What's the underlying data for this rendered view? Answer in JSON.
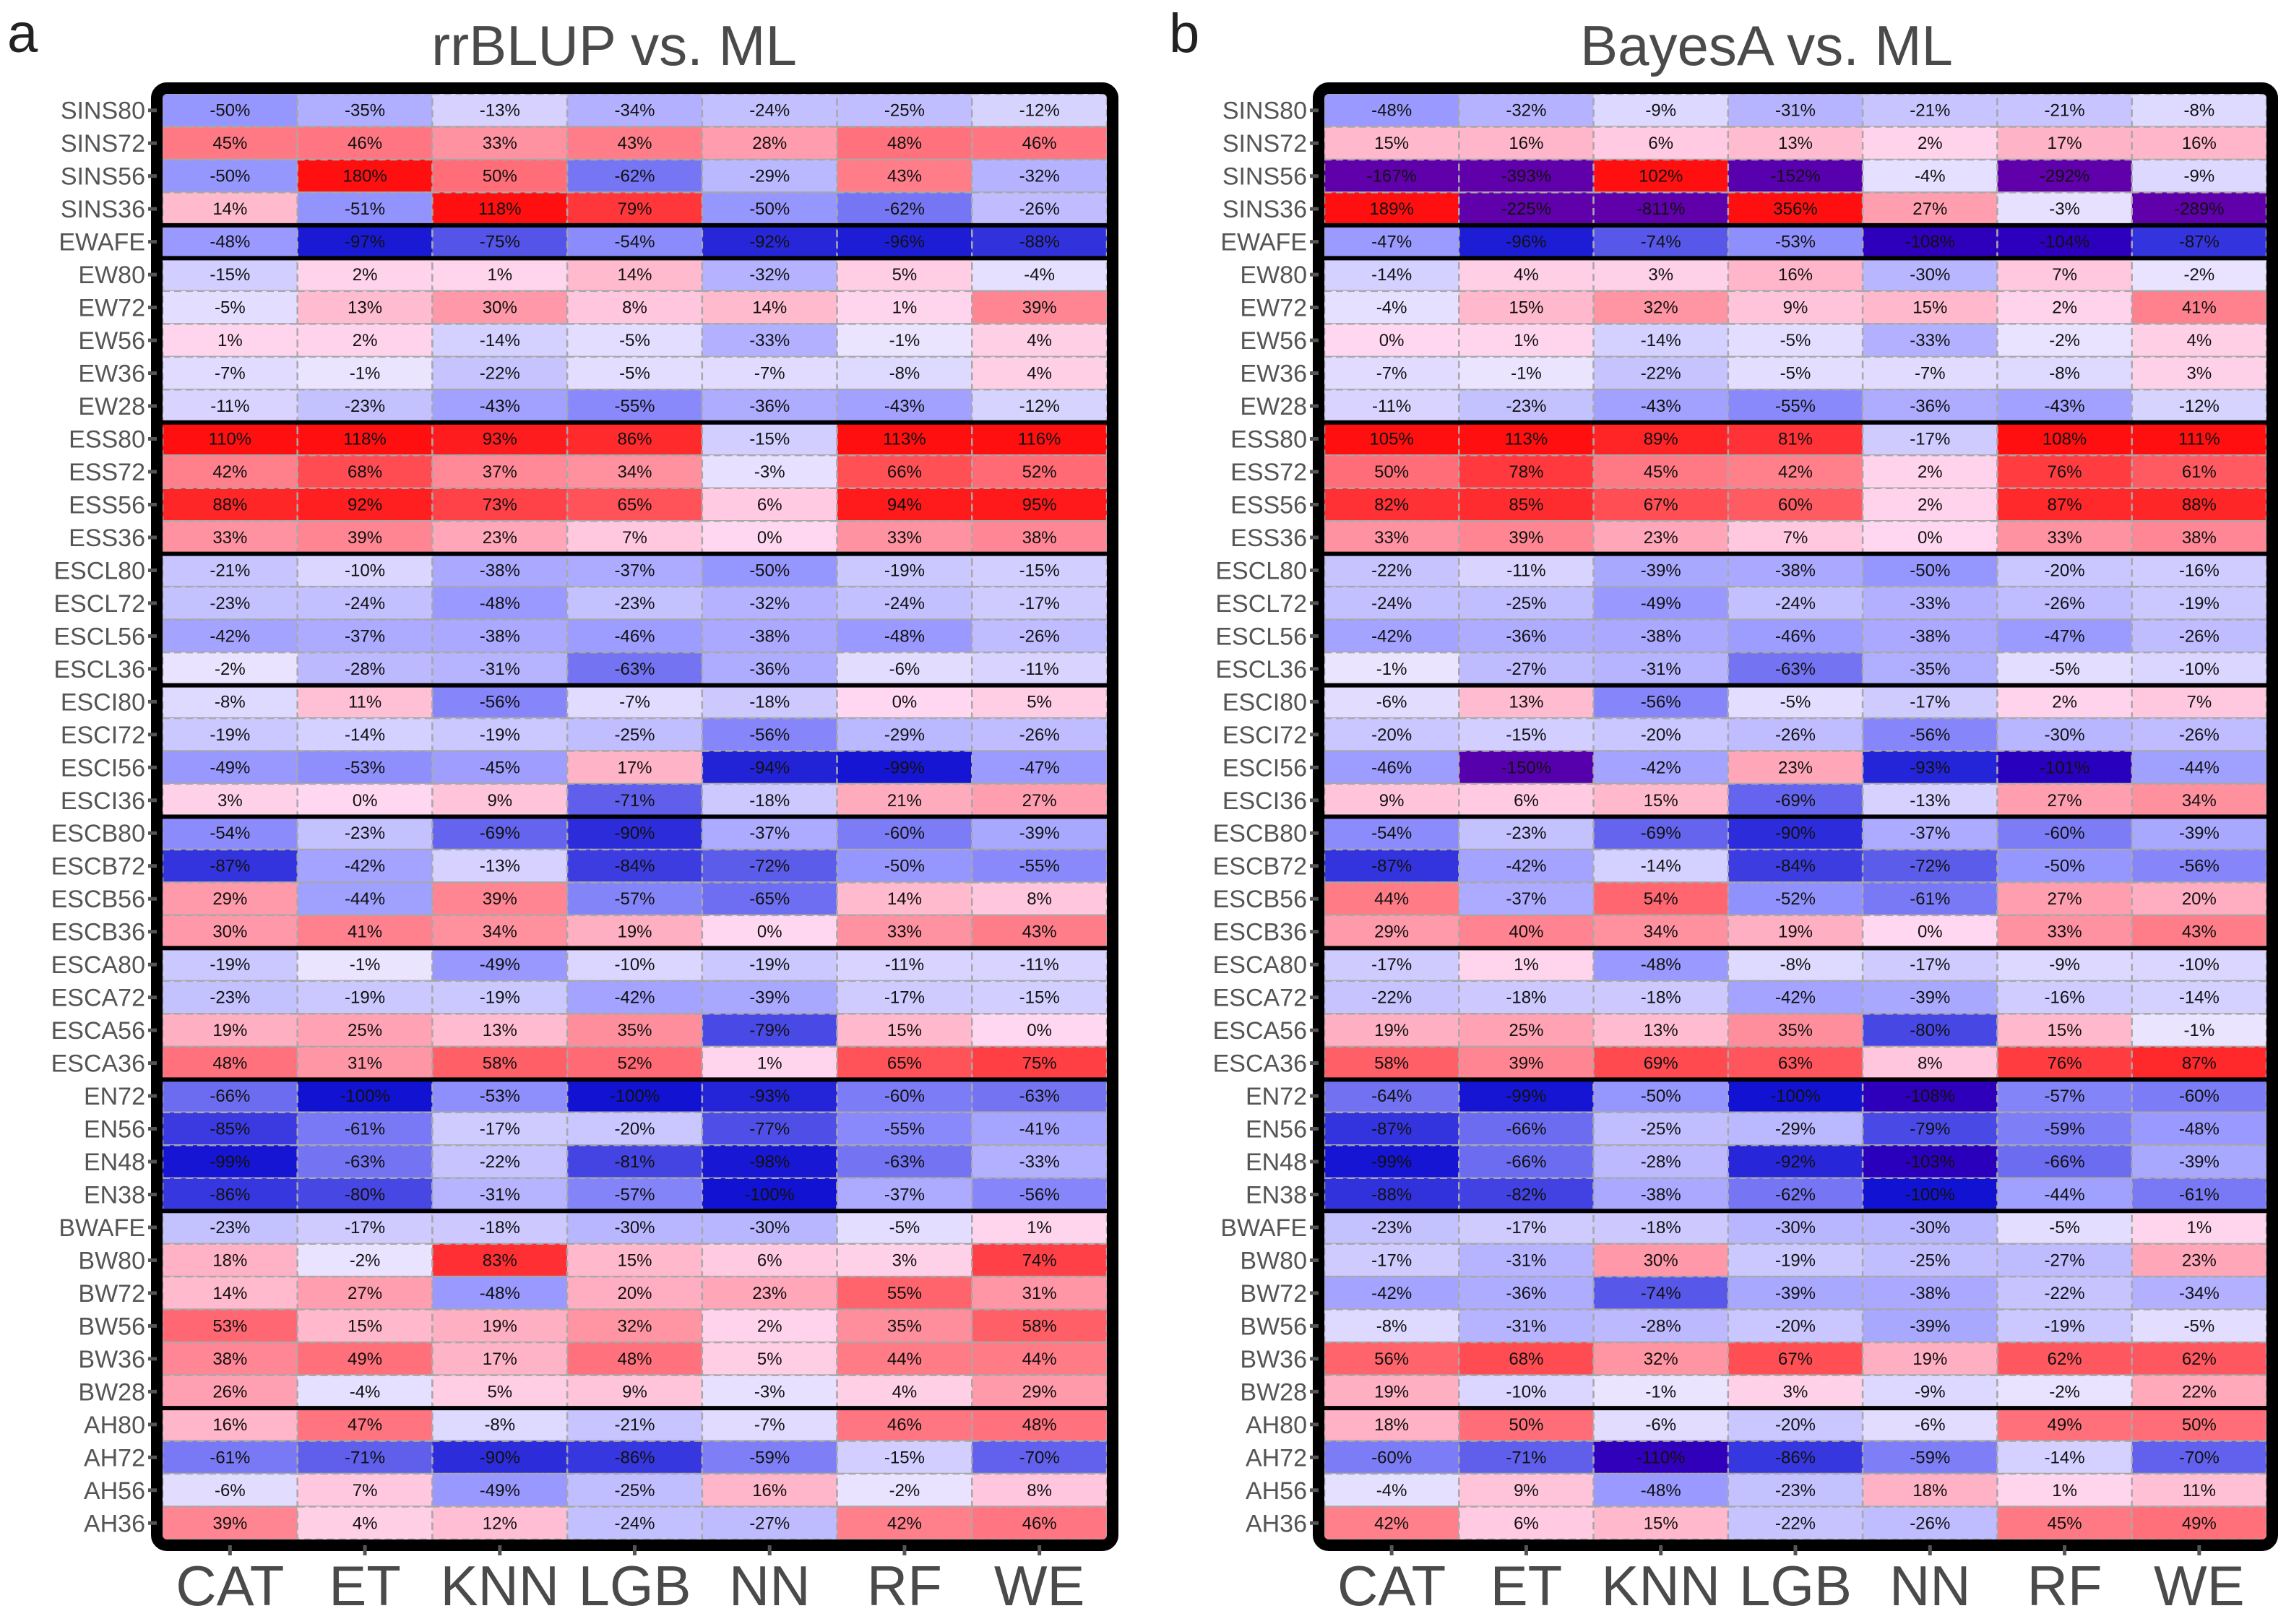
{
  "chart_data": [
    {
      "type": "heatmap",
      "panel": "a",
      "title": "rrBLUP vs. ML",
      "columns": [
        "CAT",
        "ET",
        "KNN",
        "LGB",
        "NN",
        "RF",
        "WE"
      ],
      "rows": [
        "SINS80",
        "SINS72",
        "SINS56",
        "SINS36",
        "EWAFE",
        "EW80",
        "EW72",
        "EW56",
        "EW36",
        "EW28",
        "ESS80",
        "ESS72",
        "ESS56",
        "ESS36",
        "ESCL80",
        "ESCL72",
        "ESCL56",
        "ESCL36",
        "ESCI80",
        "ESCI72",
        "ESCI56",
        "ESCI36",
        "ESCB80",
        "ESCB72",
        "ESCB56",
        "ESCB36",
        "ESCA80",
        "ESCA72",
        "ESCA56",
        "ESCA36",
        "EN72",
        "EN56",
        "EN48",
        "EN38",
        "BWAFE",
        "BW80",
        "BW72",
        "BW56",
        "BW36",
        "BW28",
        "AH80",
        "AH72",
        "AH56",
        "AH36"
      ],
      "group_break_after": [
        3,
        4,
        9,
        13,
        17,
        21,
        25,
        29,
        33,
        39
      ],
      "value_unit": "%",
      "values": [
        [
          -50,
          -35,
          -13,
          -34,
          -24,
          -25,
          -12
        ],
        [
          45,
          46,
          33,
          43,
          28,
          48,
          46
        ],
        [
          -50,
          180,
          50,
          -62,
          -29,
          43,
          -32
        ],
        [
          14,
          -51,
          118,
          79,
          -50,
          -62,
          -26
        ],
        [
          -48,
          -97,
          -75,
          -54,
          -92,
          -96,
          -88
        ],
        [
          -15,
          2,
          1,
          14,
          -32,
          5,
          -4
        ],
        [
          -5,
          13,
          30,
          8,
          14,
          1,
          39
        ],
        [
          1,
          2,
          -14,
          -5,
          -33,
          -1,
          4
        ],
        [
          -7,
          -1,
          -22,
          -5,
          -7,
          -8,
          4
        ],
        [
          -11,
          -23,
          -43,
          -55,
          -36,
          -43,
          -12
        ],
        [
          110,
          118,
          93,
          86,
          -15,
          113,
          116
        ],
        [
          42,
          68,
          37,
          34,
          -3,
          66,
          52
        ],
        [
          88,
          92,
          73,
          65,
          6,
          94,
          95
        ],
        [
          33,
          39,
          23,
          7,
          0,
          33,
          38
        ],
        [
          -21,
          -10,
          -38,
          -37,
          -50,
          -19,
          -15
        ],
        [
          -23,
          -24,
          -48,
          -23,
          -32,
          -24,
          -17
        ],
        [
          -42,
          -37,
          -38,
          -46,
          -38,
          -48,
          -26
        ],
        [
          -2,
          -28,
          -31,
          -63,
          -36,
          -6,
          -11
        ],
        [
          -8,
          11,
          -56,
          -7,
          -18,
          0,
          5
        ],
        [
          -19,
          -14,
          -19,
          -25,
          -56,
          -29,
          -26
        ],
        [
          -49,
          -53,
          -45,
          17,
          -94,
          -99,
          -47
        ],
        [
          3,
          0,
          9,
          -71,
          -18,
          21,
          27
        ],
        [
          -54,
          -23,
          -69,
          -90,
          -37,
          -60,
          -39
        ],
        [
          -87,
          -42,
          -13,
          -84,
          -72,
          -50,
          -55
        ],
        [
          29,
          -44,
          39,
          -57,
          -65,
          14,
          8
        ],
        [
          30,
          41,
          34,
          19,
          0,
          33,
          43
        ],
        [
          -19,
          -1,
          -49,
          -10,
          -19,
          -11,
          -11
        ],
        [
          -23,
          -19,
          -19,
          -42,
          -39,
          -17,
          -15
        ],
        [
          19,
          25,
          13,
          35,
          -79,
          15,
          0
        ],
        [
          48,
          31,
          58,
          52,
          1,
          65,
          75
        ],
        [
          -66,
          -100,
          -53,
          -100,
          -93,
          -60,
          -63
        ],
        [
          -85,
          -61,
          -17,
          -20,
          -77,
          -55,
          -41
        ],
        [
          -99,
          -63,
          -22,
          -81,
          -98,
          -63,
          -33
        ],
        [
          -86,
          -80,
          -31,
          -57,
          -100,
          -37,
          -56
        ],
        [
          -23,
          -17,
          -18,
          -30,
          -30,
          -5,
          1
        ],
        [
          18,
          -2,
          83,
          15,
          6,
          3,
          74
        ],
        [
          14,
          27,
          -48,
          20,
          23,
          55,
          31
        ],
        [
          53,
          15,
          19,
          32,
          2,
          35,
          58
        ],
        [
          38,
          49,
          17,
          48,
          5,
          44,
          44
        ],
        [
          26,
          -4,
          5,
          9,
          -3,
          4,
          29
        ],
        [
          16,
          47,
          -8,
          -21,
          -7,
          46,
          48
        ],
        [
          -61,
          -71,
          -90,
          -86,
          -59,
          -15,
          -70
        ],
        [
          -6,
          7,
          -49,
          -25,
          16,
          -2,
          8
        ],
        [
          39,
          4,
          12,
          -24,
          -27,
          42,
          46
        ]
      ]
    },
    {
      "type": "heatmap",
      "panel": "b",
      "title": "BayesA vs. ML",
      "columns": [
        "CAT",
        "ET",
        "KNN",
        "LGB",
        "NN",
        "RF",
        "WE"
      ],
      "rows": [
        "SINS80",
        "SINS72",
        "SINS56",
        "SINS36",
        "EWAFE",
        "EW80",
        "EW72",
        "EW56",
        "EW36",
        "EW28",
        "ESS80",
        "ESS72",
        "ESS56",
        "ESS36",
        "ESCL80",
        "ESCL72",
        "ESCL56",
        "ESCL36",
        "ESCI80",
        "ESCI72",
        "ESCI56",
        "ESCI36",
        "ESCB80",
        "ESCB72",
        "ESCB56",
        "ESCB36",
        "ESCA80",
        "ESCA72",
        "ESCA56",
        "ESCA36",
        "EN72",
        "EN56",
        "EN48",
        "EN38",
        "BWAFE",
        "BW80",
        "BW72",
        "BW56",
        "BW36",
        "BW28",
        "AH80",
        "AH72",
        "AH56",
        "AH36"
      ],
      "group_break_after": [
        3,
        4,
        9,
        13,
        17,
        21,
        25,
        29,
        33,
        39
      ],
      "value_unit": "%",
      "values": [
        [
          -48,
          -32,
          -9,
          -31,
          -21,
          -21,
          -8
        ],
        [
          15,
          16,
          6,
          13,
          2,
          17,
          16
        ],
        [
          -167,
          -393,
          102,
          -152,
          -4,
          -292,
          -9
        ],
        [
          189,
          -225,
          -811,
          356,
          27,
          -3,
          -289
        ],
        [
          -47,
          -96,
          -74,
          -53,
          -108,
          -104,
          -87
        ],
        [
          -14,
          4,
          3,
          16,
          -30,
          7,
          -2
        ],
        [
          -4,
          15,
          32,
          9,
          15,
          2,
          41
        ],
        [
          0,
          1,
          -14,
          -5,
          -33,
          -2,
          4
        ],
        [
          -7,
          -1,
          -22,
          -5,
          -7,
          -8,
          3
        ],
        [
          -11,
          -23,
          -43,
          -55,
          -36,
          -43,
          -12
        ],
        [
          105,
          113,
          89,
          81,
          -17,
          108,
          111
        ],
        [
          50,
          78,
          45,
          42,
          2,
          76,
          61
        ],
        [
          82,
          85,
          67,
          60,
          2,
          87,
          88
        ],
        [
          33,
          39,
          23,
          7,
          0,
          33,
          38
        ],
        [
          -22,
          -11,
          -39,
          -38,
          -50,
          -20,
          -16
        ],
        [
          -24,
          -25,
          -49,
          -24,
          -33,
          -26,
          -19
        ],
        [
          -42,
          -36,
          -38,
          -46,
          -38,
          -47,
          -26
        ],
        [
          -1,
          -27,
          -31,
          -63,
          -35,
          -5,
          -10
        ],
        [
          -6,
          13,
          -56,
          -5,
          -17,
          2,
          7
        ],
        [
          -20,
          -15,
          -20,
          -26,
          -56,
          -30,
          -26
        ],
        [
          -46,
          -150,
          -42,
          23,
          -93,
          -101,
          -44
        ],
        [
          9,
          6,
          15,
          -69,
          -13,
          27,
          34
        ],
        [
          -54,
          -23,
          -69,
          -90,
          -37,
          -60,
          -39
        ],
        [
          -87,
          -42,
          -14,
          -84,
          -72,
          -50,
          -56
        ],
        [
          44,
          -37,
          54,
          -52,
          -61,
          27,
          20
        ],
        [
          29,
          40,
          34,
          19,
          0,
          33,
          43
        ],
        [
          -17,
          1,
          -48,
          -8,
          -17,
          -9,
          -10
        ],
        [
          -22,
          -18,
          -18,
          -42,
          -39,
          -16,
          -14
        ],
        [
          19,
          25,
          13,
          35,
          -80,
          15,
          -1
        ],
        [
          58,
          39,
          69,
          63,
          8,
          76,
          87
        ],
        [
          -64,
          -99,
          -50,
          -100,
          -108,
          -57,
          -60
        ],
        [
          -87,
          -66,
          -25,
          -29,
          -79,
          -59,
          -48
        ],
        [
          -99,
          -66,
          -28,
          -92,
          -103,
          -66,
          -39
        ],
        [
          -88,
          -82,
          -38,
          -62,
          -100,
          -44,
          -61
        ],
        [
          -23,
          -17,
          -18,
          -30,
          -30,
          -5,
          1
        ],
        [
          -17,
          -31,
          30,
          -19,
          -25,
          -27,
          23
        ],
        [
          -42,
          -36,
          -74,
          -39,
          -38,
          -22,
          -34
        ],
        [
          -8,
          -31,
          -28,
          -20,
          -39,
          -19,
          -5
        ],
        [
          56,
          68,
          32,
          67,
          19,
          62,
          62
        ],
        [
          19,
          -10,
          -1,
          3,
          -9,
          -2,
          22
        ],
        [
          18,
          50,
          -6,
          -20,
          -6,
          49,
          50
        ],
        [
          -60,
          -71,
          -110,
          -86,
          -59,
          -14,
          -70
        ],
        [
          -4,
          9,
          -48,
          -23,
          18,
          1,
          11
        ],
        [
          42,
          6,
          15,
          -22,
          -26,
          45,
          49
        ]
      ]
    }
  ]
}
